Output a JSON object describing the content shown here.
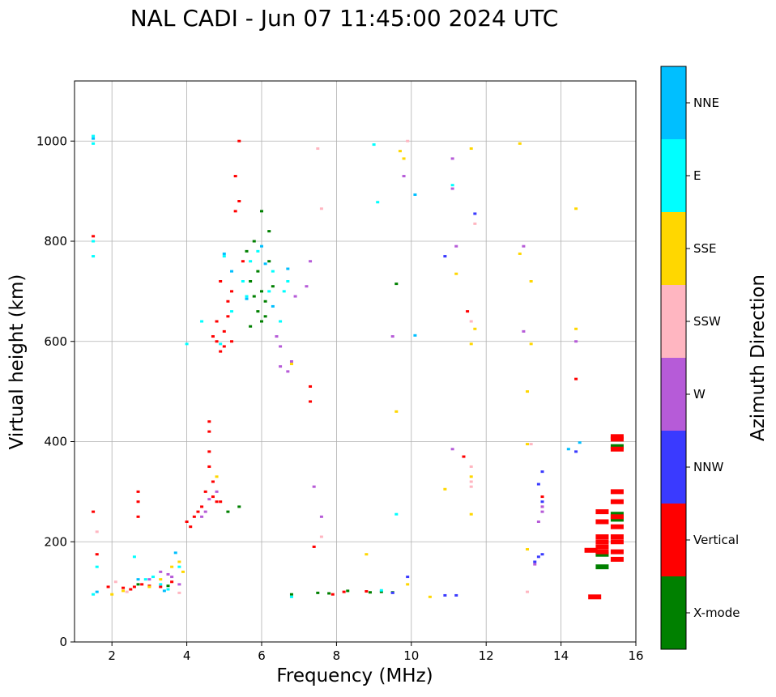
{
  "chart_data": {
    "type": "scatter",
    "title": "NAL CADI - Jun 07 11:45:00 2024 UTC",
    "xlabel": "Frequency (MHz)",
    "ylabel": "Virtual height (km)",
    "xlim": [
      1,
      16
    ],
    "ylim": [
      0,
      1120
    ],
    "xticks": [
      2,
      4,
      6,
      8,
      10,
      12,
      14,
      16
    ],
    "yticks": [
      0,
      200,
      400,
      600,
      800,
      1000
    ],
    "grid": true,
    "colorbar": {
      "title": "Azimuth Direction",
      "categories": [
        {
          "label": "X-mode",
          "color": "#008000"
        },
        {
          "label": "Vertical",
          "color": "#ff0000"
        },
        {
          "label": "NNW",
          "color": "#3a3aff"
        },
        {
          "label": "W",
          "color": "#b65bd8"
        },
        {
          "label": "SSW",
          "color": "#ffb6c1"
        },
        {
          "label": "SSE",
          "color": "#ffd700"
        },
        {
          "label": "E",
          "color": "#00ffff"
        },
        {
          "label": "NNE",
          "color": "#00bfff"
        }
      ]
    },
    "series": [
      {
        "name": "X-mode",
        "points": [
          [
            2.7,
            115
          ],
          [
            3.5,
            112
          ],
          [
            5.1,
            260
          ],
          [
            5.4,
            270
          ],
          [
            5.7,
            720
          ],
          [
            5.8,
            690
          ],
          [
            5.9,
            660
          ],
          [
            6.0,
            700
          ],
          [
            6.1,
            680
          ],
          [
            6.2,
            760
          ],
          [
            6.0,
            860
          ],
          [
            5.8,
            800
          ],
          [
            6.1,
            650
          ],
          [
            5.9,
            740
          ],
          [
            6.3,
            710
          ],
          [
            9.6,
            715
          ],
          [
            6.8,
            95
          ],
          [
            7.5,
            98
          ],
          [
            7.8,
            97
          ],
          [
            8.3,
            102
          ],
          [
            8.9,
            99
          ],
          [
            9.2,
            100
          ],
          [
            9.5,
            99
          ],
          [
            15.1,
            150
          ],
          [
            15.1,
            175
          ],
          [
            15.5,
            390
          ],
          [
            15.5,
            255
          ],
          [
            15.5,
            245
          ],
          [
            5.7,
            630
          ],
          [
            6.0,
            640
          ],
          [
            5.6,
            780
          ],
          [
            6.2,
            820
          ]
        ]
      },
      {
        "name": "Vertical",
        "points": [
          [
            1.5,
            260
          ],
          [
            1.5,
            810
          ],
          [
            1.6,
            175
          ],
          [
            1.9,
            110
          ],
          [
            2.3,
            108
          ],
          [
            2.5,
            105
          ],
          [
            2.6,
            110
          ],
          [
            2.7,
            300
          ],
          [
            2.7,
            280
          ],
          [
            2.7,
            250
          ],
          [
            2.8,
            115
          ],
          [
            3.0,
            112
          ],
          [
            3.3,
            110
          ],
          [
            3.6,
            120
          ],
          [
            4.0,
            240
          ],
          [
            4.1,
            230
          ],
          [
            4.2,
            250
          ],
          [
            4.3,
            260
          ],
          [
            4.4,
            270
          ],
          [
            4.5,
            300
          ],
          [
            4.6,
            380
          ],
          [
            4.6,
            420
          ],
          [
            4.6,
            440
          ],
          [
            4.6,
            350
          ],
          [
            4.7,
            320
          ],
          [
            4.7,
            290
          ],
          [
            4.9,
            280
          ],
          [
            4.8,
            280
          ],
          [
            4.7,
            610
          ],
          [
            4.8,
            600
          ],
          [
            4.9,
            580
          ],
          [
            5.0,
            590
          ],
          [
            5.0,
            620
          ],
          [
            5.1,
            650
          ],
          [
            5.2,
            700
          ],
          [
            5.3,
            860
          ],
          [
            5.3,
            930
          ],
          [
            5.4,
            1000
          ],
          [
            5.4,
            880
          ],
          [
            5.5,
            760
          ],
          [
            5.1,
            680
          ],
          [
            4.9,
            720
          ],
          [
            4.8,
            640
          ],
          [
            5.2,
            600
          ],
          [
            7.3,
            510
          ],
          [
            7.3,
            480
          ],
          [
            7.4,
            190
          ],
          [
            7.9,
            95
          ],
          [
            8.2,
            100
          ],
          [
            8.8,
            101
          ],
          [
            11.5,
            660
          ],
          [
            11.4,
            370
          ],
          [
            13.5,
            290
          ],
          [
            13.5,
            270
          ],
          [
            14.4,
            525
          ],
          [
            14.9,
            90
          ],
          [
            15.1,
            240
          ],
          [
            15.1,
            210
          ],
          [
            15.1,
            200
          ],
          [
            15.1,
            190
          ],
          [
            15.1,
            180
          ],
          [
            15.1,
            260
          ],
          [
            15.5,
            410
          ],
          [
            15.5,
            405
          ],
          [
            15.5,
            385
          ],
          [
            15.5,
            300
          ],
          [
            15.5,
            280
          ],
          [
            15.5,
            250
          ],
          [
            15.5,
            230
          ],
          [
            15.5,
            210
          ],
          [
            15.5,
            200
          ],
          [
            15.5,
            180
          ],
          [
            15.5,
            165
          ],
          [
            14.8,
            183
          ]
        ]
      },
      {
        "name": "NNW",
        "points": [
          [
            9.9,
            130
          ],
          [
            10.9,
            93
          ],
          [
            11.2,
            93
          ],
          [
            11.7,
            855
          ],
          [
            10.9,
            770
          ],
          [
            13.5,
            340
          ],
          [
            13.4,
            315
          ],
          [
            13.5,
            280
          ],
          [
            13.5,
            175
          ],
          [
            13.4,
            170
          ],
          [
            13.3,
            160
          ],
          [
            14.4,
            380
          ],
          [
            9.5,
            98
          ]
        ]
      },
      {
        "name": "W",
        "points": [
          [
            3.0,
            125
          ],
          [
            3.3,
            140
          ],
          [
            3.5,
            135
          ],
          [
            3.6,
            130
          ],
          [
            3.8,
            115
          ],
          [
            4.4,
            250
          ],
          [
            4.5,
            260
          ],
          [
            4.6,
            285
          ],
          [
            4.8,
            300
          ],
          [
            6.4,
            610
          ],
          [
            6.5,
            590
          ],
          [
            6.5,
            550
          ],
          [
            6.7,
            540
          ],
          [
            6.8,
            560
          ],
          [
            6.9,
            690
          ],
          [
            7.2,
            710
          ],
          [
            7.3,
            760
          ],
          [
            7.4,
            310
          ],
          [
            7.6,
            250
          ],
          [
            9.5,
            610
          ],
          [
            9.8,
            930
          ],
          [
            11.1,
            385
          ],
          [
            11.1,
            965
          ],
          [
            11.1,
            905
          ],
          [
            11.2,
            790
          ],
          [
            13.0,
            620
          ],
          [
            13.0,
            790
          ],
          [
            13.5,
            270
          ],
          [
            13.5,
            260
          ],
          [
            13.4,
            240
          ],
          [
            14.4,
            600
          ],
          [
            13.3,
            155
          ]
        ]
      },
      {
        "name": "SSW",
        "points": [
          [
            1.6,
            220
          ],
          [
            2.1,
            120
          ],
          [
            2.4,
            100
          ],
          [
            3.8,
            98
          ],
          [
            7.5,
            985
          ],
          [
            7.6,
            865
          ],
          [
            7.6,
            210
          ],
          [
            9.9,
            1000
          ],
          [
            11.6,
            350
          ],
          [
            11.6,
            320
          ],
          [
            11.6,
            310
          ],
          [
            11.7,
            835
          ],
          [
            11.6,
            640
          ],
          [
            13.1,
            100
          ],
          [
            13.2,
            395
          ]
        ]
      },
      {
        "name": "SSE",
        "points": [
          [
            2.0,
            95
          ],
          [
            2.3,
            102
          ],
          [
            3.0,
            110
          ],
          [
            3.3,
            125
          ],
          [
            3.6,
            150
          ],
          [
            3.8,
            160
          ],
          [
            3.9,
            140
          ],
          [
            4.8,
            330
          ],
          [
            6.8,
            555
          ],
          [
            8.8,
            175
          ],
          [
            9.6,
            460
          ],
          [
            9.7,
            980
          ],
          [
            9.8,
            965
          ],
          [
            9.9,
            115
          ],
          [
            10.5,
            90
          ],
          [
            10.9,
            305
          ],
          [
            11.2,
            735
          ],
          [
            11.6,
            985
          ],
          [
            11.6,
            255
          ],
          [
            11.6,
            595
          ],
          [
            11.7,
            625
          ],
          [
            12.9,
            995
          ],
          [
            12.9,
            775
          ],
          [
            13.1,
            395
          ],
          [
            13.1,
            500
          ],
          [
            13.2,
            595
          ],
          [
            13.2,
            720
          ],
          [
            13.1,
            185
          ],
          [
            14.4,
            865
          ],
          [
            14.4,
            625
          ],
          [
            11.6,
            330
          ]
        ]
      },
      {
        "name": "E",
        "points": [
          [
            1.5,
            1010
          ],
          [
            1.5,
            995
          ],
          [
            1.5,
            800
          ],
          [
            1.5,
            770
          ],
          [
            1.5,
            95
          ],
          [
            1.6,
            150
          ],
          [
            2.6,
            170
          ],
          [
            2.9,
            125
          ],
          [
            3.1,
            130
          ],
          [
            3.3,
            115
          ],
          [
            3.5,
            105
          ],
          [
            3.8,
            150
          ],
          [
            4.0,
            595
          ],
          [
            4.4,
            640
          ],
          [
            4.9,
            595
          ],
          [
            5.0,
            770
          ],
          [
            5.2,
            660
          ],
          [
            5.5,
            720
          ],
          [
            5.6,
            690
          ],
          [
            5.7,
            760
          ],
          [
            5.9,
            780
          ],
          [
            6.2,
            700
          ],
          [
            6.3,
            740
          ],
          [
            6.5,
            640
          ],
          [
            6.6,
            700
          ],
          [
            6.7,
            720
          ],
          [
            6.8,
            90
          ],
          [
            9.0,
            993
          ],
          [
            9.1,
            878
          ],
          [
            9.6,
            255
          ],
          [
            9.2,
            103
          ],
          [
            11.1,
            912
          ]
        ]
      },
      {
        "name": "NNE",
        "points": [
          [
            1.5,
            1005
          ],
          [
            1.6,
            100
          ],
          [
            2.7,
            125
          ],
          [
            3.4,
            102
          ],
          [
            3.7,
            178
          ],
          [
            5.0,
            775
          ],
          [
            5.2,
            740
          ],
          [
            5.6,
            685
          ],
          [
            6.0,
            790
          ],
          [
            6.1,
            755
          ],
          [
            6.3,
            670
          ],
          [
            6.7,
            745
          ],
          [
            10.1,
            612
          ],
          [
            10.1,
            893
          ],
          [
            14.5,
            398
          ],
          [
            14.2,
            385
          ]
        ]
      }
    ]
  }
}
